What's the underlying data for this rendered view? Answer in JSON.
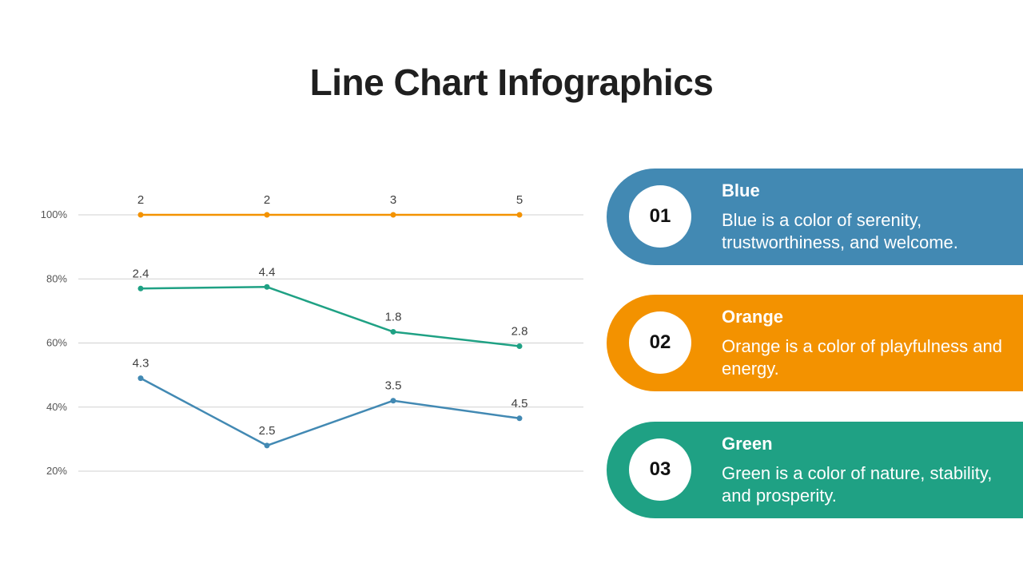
{
  "title": "Line Chart Infographics",
  "chart_data": {
    "type": "line",
    "categories": [
      "",
      "",
      "",
      ""
    ],
    "yticks": [
      "20%",
      "40%",
      "60%",
      "80%",
      "100%"
    ],
    "ylim": [
      0.2,
      1.0
    ],
    "grid": true,
    "series": [
      {
        "color": "#f39200",
        "values": [
          1.0,
          1.0,
          1.0,
          1.0
        ],
        "labels": [
          "2",
          "2",
          "3",
          "5"
        ]
      },
      {
        "color": "#1fa184",
        "values": [
          0.77,
          0.775,
          0.635,
          0.59
        ],
        "labels": [
          "2.4",
          "4.4",
          "1.8",
          "2.8"
        ]
      },
      {
        "color": "#4289b3",
        "values": [
          0.49,
          0.28,
          0.42,
          0.365
        ],
        "labels": [
          "4.3",
          "2.5",
          "3.5",
          "4.5"
        ]
      }
    ]
  },
  "cards": [
    {
      "number": "01",
      "heading": "Blue",
      "text": "Blue is a color of serenity, trustworthiness, and welcome.",
      "color": "#4289b3"
    },
    {
      "number": "02",
      "heading": "Orange",
      "text": "Orange is a color of playfulness and energy.",
      "color": "#f39200"
    },
    {
      "number": "03",
      "heading": "Green",
      "text": "Green is a color of nature, stability, and prosperity.",
      "color": "#1fa184"
    }
  ]
}
